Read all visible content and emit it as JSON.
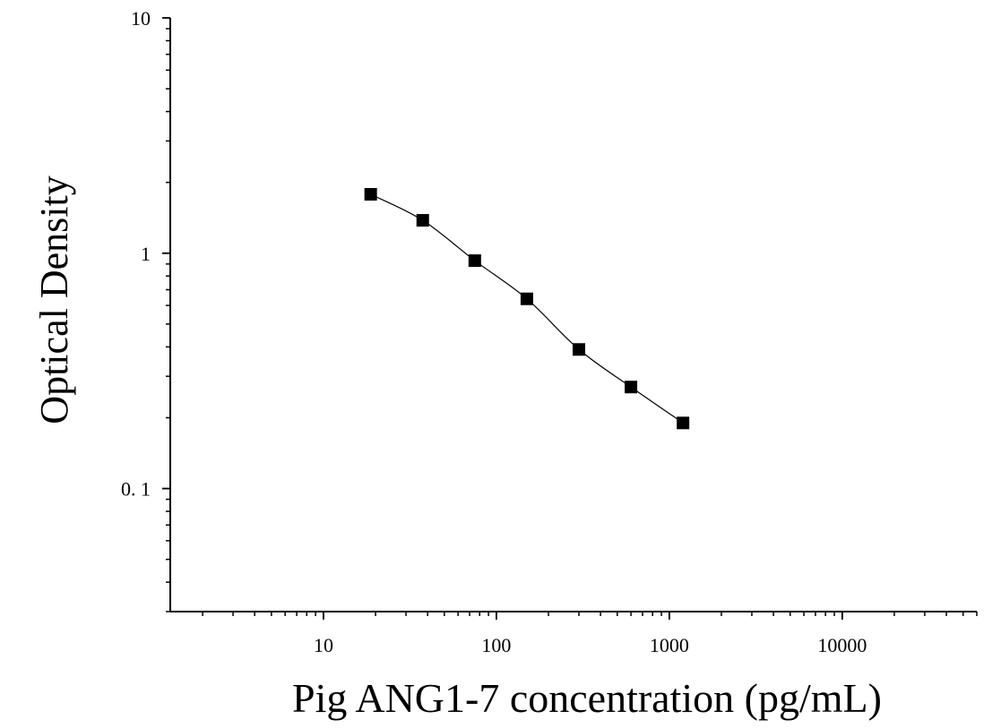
{
  "chart_data": {
    "type": "scatter",
    "title": "",
    "xlabel": "Pig ANG1-7 concentration (pg/mL)",
    "ylabel": "Optical Density",
    "x_scale": "log",
    "y_scale": "log",
    "xlim": [
      1.3,
      60000
    ],
    "ylim": [
      0.03,
      10
    ],
    "x_ticks": [
      {
        "value": 10,
        "label": "10"
      },
      {
        "value": 100,
        "label": "100"
      },
      {
        "value": 1000,
        "label": "1000"
      },
      {
        "value": 10000,
        "label": "10000"
      }
    ],
    "y_ticks": [
      {
        "value": 0.1,
        "label": "0. 1"
      },
      {
        "value": 1,
        "label": "1"
      },
      {
        "value": 10,
        "label": "10"
      }
    ],
    "grid": false,
    "legend": "none",
    "fit_curve": true,
    "marker_color": "#000000",
    "curve_color": "#000000",
    "series": [
      {
        "x": [
          18.75,
          37.5,
          75,
          150,
          300,
          600,
          1200
        ],
        "y": [
          1.78,
          1.38,
          0.93,
          0.64,
          0.39,
          0.27,
          0.19
        ]
      }
    ]
  }
}
